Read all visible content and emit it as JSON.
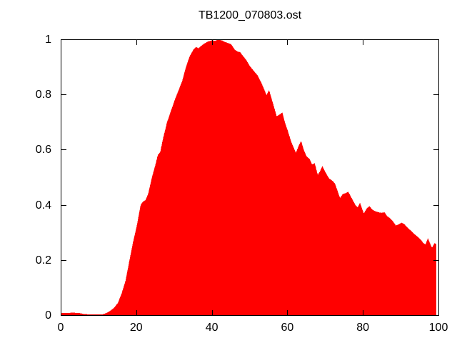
{
  "header": {
    "title": "TB1200_070803.ost"
  },
  "colors": {
    "fill": "#ff0000",
    "axis": "#000000",
    "background": "#ffffff"
  },
  "chart_data": {
    "type": "area",
    "title": "TB1200_070803.ost",
    "xlabel": "",
    "ylabel": "",
    "xlim": [
      0,
      100
    ],
    "ylim": [
      0,
      1
    ],
    "grid": false,
    "legend": "none",
    "x_tick_values": [
      0,
      20,
      40,
      60,
      80,
      100
    ],
    "x_tick_labels": [
      "0",
      "20",
      "40",
      "60",
      "80",
      "100"
    ],
    "y_tick_values": [
      0,
      0.2,
      0.4,
      0.6,
      0.8,
      1
    ],
    "y_tick_labels": [
      "0",
      "0.2",
      "0.4",
      "0.6",
      "0.8",
      "1"
    ],
    "fill_color": "#ff0000",
    "series": [
      {
        "name": "TB1200_070803.ost",
        "x": [
          0,
          1,
          2,
          3,
          4,
          5,
          6,
          7,
          8,
          9,
          10,
          11,
          12,
          13,
          14,
          15,
          16,
          17,
          18,
          19,
          20,
          21,
          21.6,
          22.3,
          23,
          24,
          25,
          25.6,
          26.2,
          27,
          28,
          29,
          30,
          31,
          32,
          33,
          34,
          35,
          35.7,
          36.3,
          37,
          38,
          39,
          40,
          40.7,
          41.3,
          42,
          42.7,
          43.3,
          44,
          45,
          46,
          46.7,
          47.4,
          48,
          49,
          50,
          51,
          52,
          53,
          53.8,
          54.4,
          55.1,
          56,
          57.1,
          58,
          58.6,
          59.3,
          60,
          61,
          62.2,
          63,
          63.6,
          64.3,
          65,
          65.8,
          66.5,
          67.2,
          68,
          68.6,
          69.2,
          70,
          71,
          72,
          72.6,
          73.3,
          73.9,
          74.6,
          75.3,
          76.1,
          77,
          78,
          78.6,
          79.2,
          80.2,
          81,
          81.7,
          82.5,
          83.2,
          84,
          85,
          85.7,
          86.4,
          87.2,
          88,
          88.7,
          89.5,
          90.2,
          91,
          92,
          92.8,
          93.6,
          94.4,
          95.2,
          96,
          96.6,
          97.2,
          97.8,
          98.3,
          99,
          99.4
        ],
        "y": [
          0.007,
          0.008,
          0.008,
          0.009,
          0.008,
          0.007,
          0.004,
          0.003,
          0.003,
          0.002,
          0.002,
          0.003,
          0.008,
          0.016,
          0.027,
          0.045,
          0.08,
          0.125,
          0.195,
          0.265,
          0.325,
          0.4,
          0.412,
          0.418,
          0.44,
          0.5,
          0.55,
          0.583,
          0.592,
          0.645,
          0.7,
          0.74,
          0.78,
          0.815,
          0.85,
          0.9,
          0.94,
          0.965,
          0.975,
          0.97,
          0.978,
          0.988,
          0.995,
          0.999,
          0.997,
          1,
          1,
          0.998,
          0.993,
          0.99,
          0.985,
          0.965,
          0.958,
          0.956,
          0.945,
          0.928,
          0.905,
          0.888,
          0.872,
          0.846,
          0.82,
          0.8,
          0.818,
          0.775,
          0.723,
          0.73,
          0.737,
          0.7,
          0.672,
          0.628,
          0.59,
          0.618,
          0.633,
          0.6,
          0.578,
          0.568,
          0.548,
          0.552,
          0.51,
          0.523,
          0.542,
          0.52,
          0.497,
          0.487,
          0.477,
          0.45,
          0.426,
          0.44,
          0.443,
          0.448,
          0.425,
          0.4,
          0.392,
          0.408,
          0.37,
          0.388,
          0.396,
          0.383,
          0.378,
          0.374,
          0.372,
          0.374,
          0.36,
          0.352,
          0.34,
          0.326,
          0.33,
          0.336,
          0.33,
          0.315,
          0.306,
          0.295,
          0.286,
          0.276,
          0.262,
          0.257,
          0.28,
          0.26,
          0.245,
          0.262,
          0.258
        ]
      }
    ]
  }
}
